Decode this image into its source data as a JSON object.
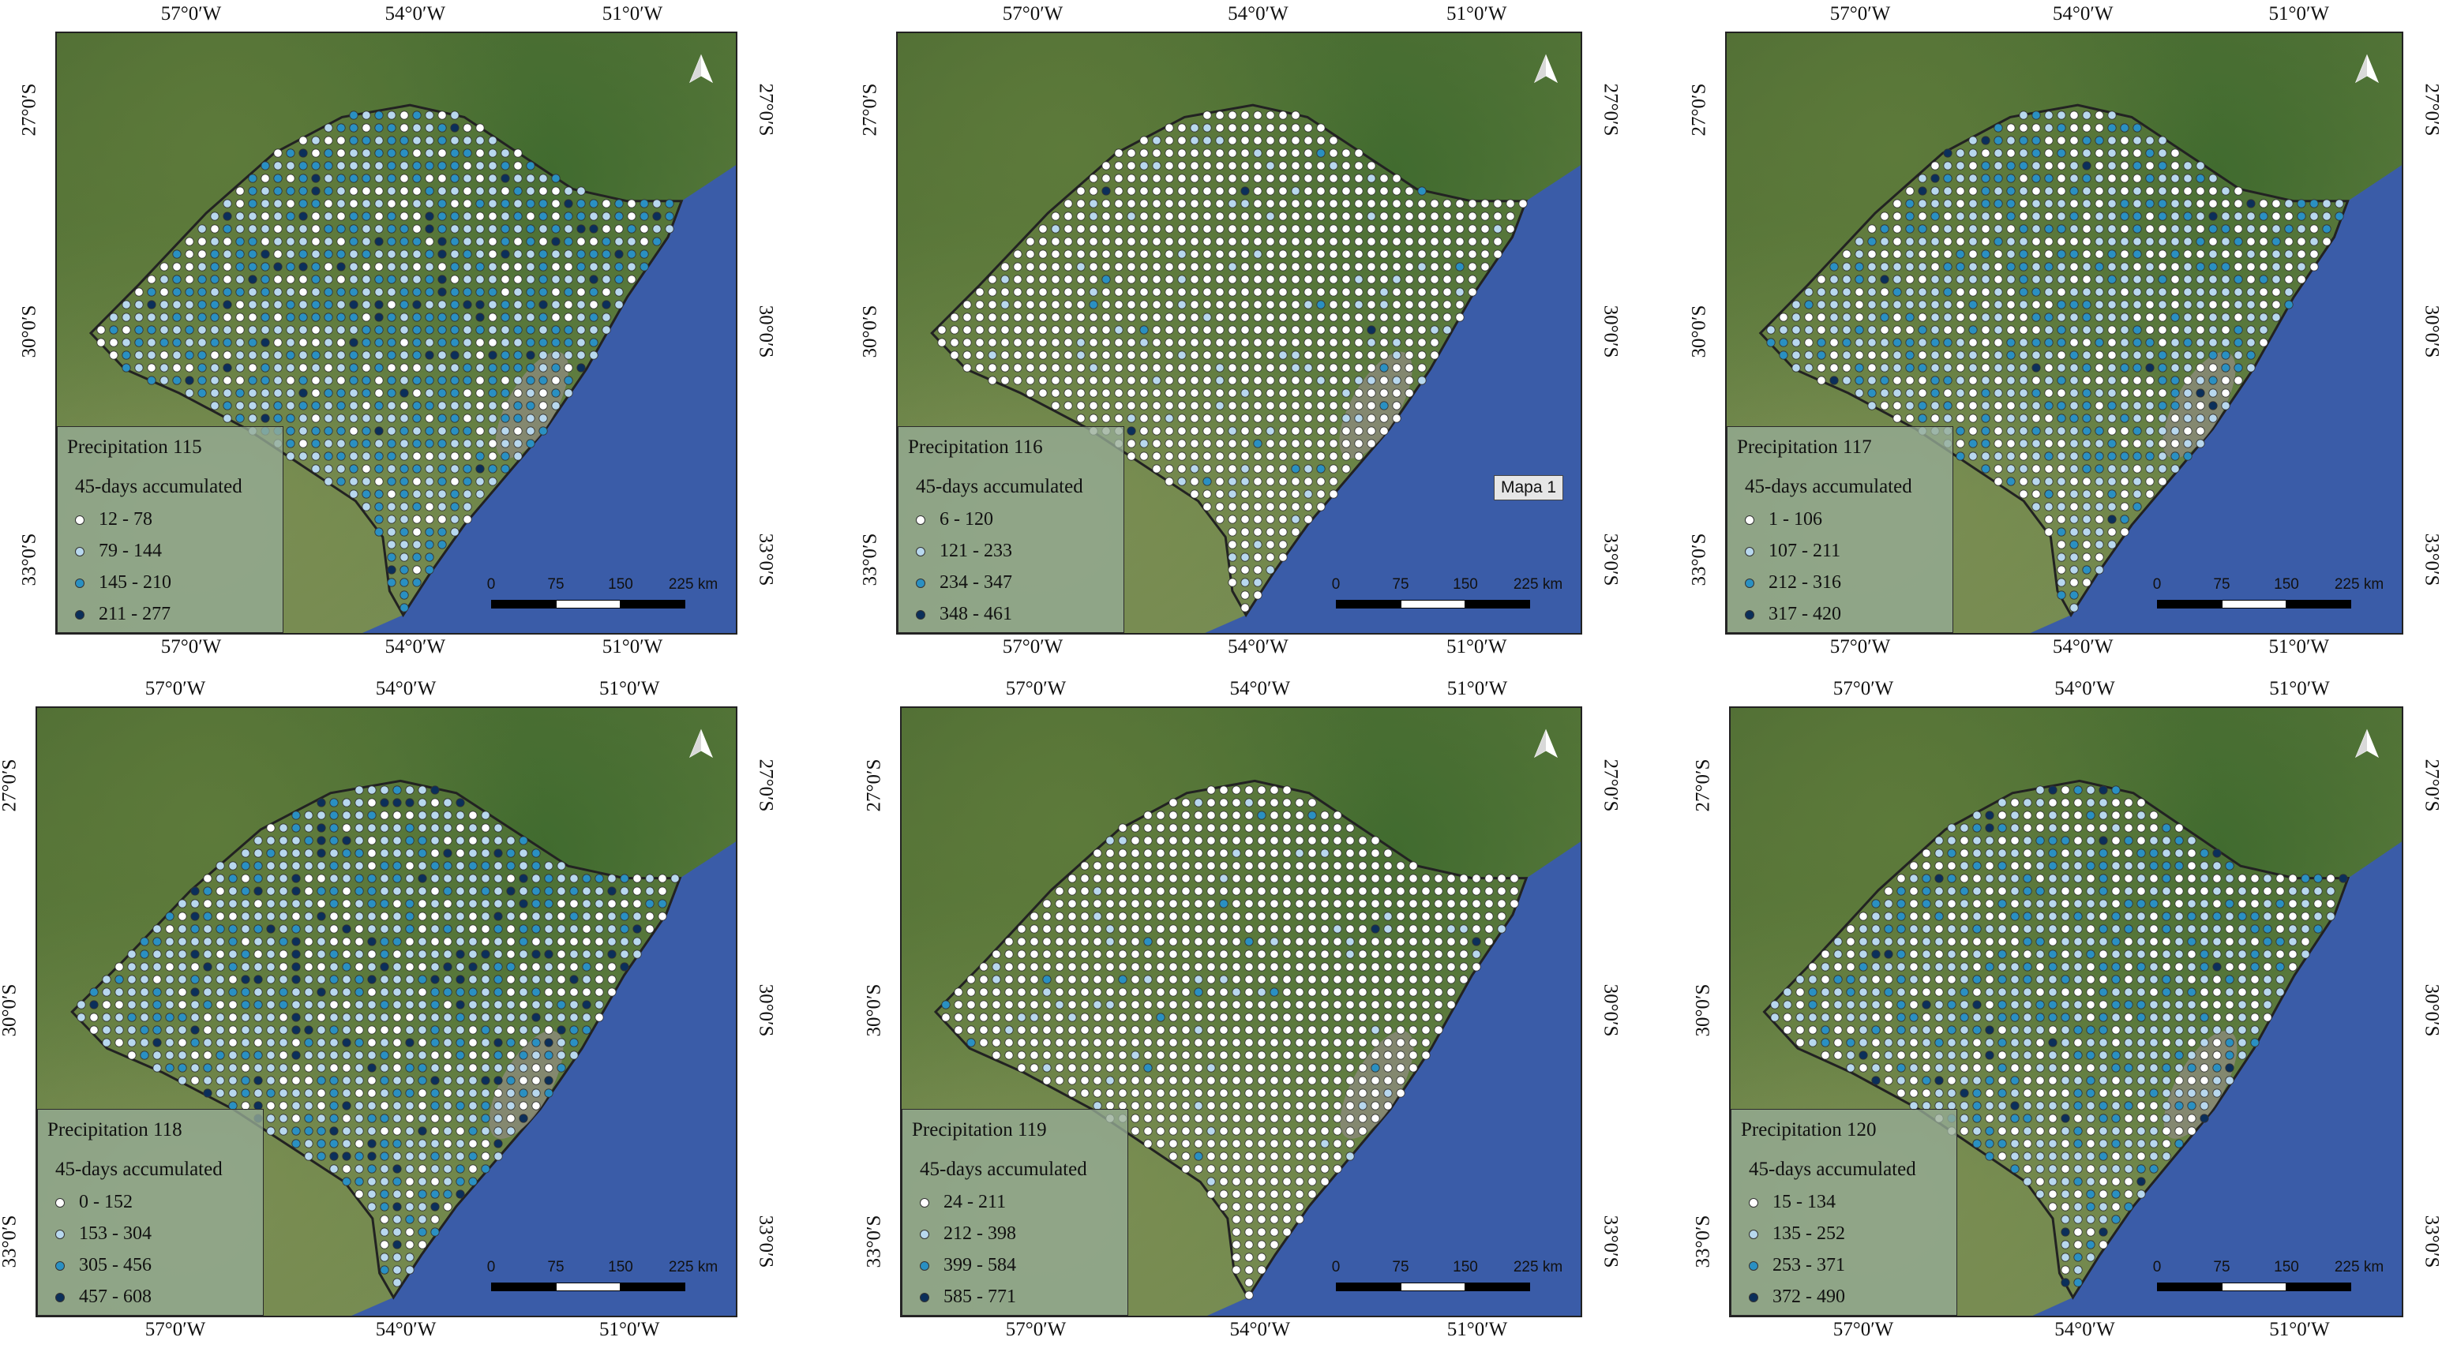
{
  "axis_labels": {
    "lon": [
      "57°0′W",
      "54°0′W",
      "51°0′W"
    ],
    "lat": [
      "27°0′S",
      "30°0′S",
      "33°0′S"
    ]
  },
  "scale": {
    "ticks": [
      "0",
      "75",
      "150",
      "225 km"
    ]
  },
  "colors": {
    "class1": "#ffffff",
    "class2": "#b8d8ee",
    "class3": "#2a90c2",
    "class4": "#0b2f5a",
    "ocean": "#3a5ca8"
  },
  "extra_label": "Mapa 1",
  "panels": [
    {
      "title": "Precipitation 115",
      "subtitle": "45-days accumulated",
      "classes": [
        "12 - 78",
        "79 - 144",
        "145 - 210",
        "211 - 277"
      ],
      "mix": [
        0.22,
        0.38,
        0.34,
        0.06
      ]
    },
    {
      "title": "Precipitation 116",
      "subtitle": "45-days accumulated",
      "classes": [
        "6 - 120",
        "121 - 233",
        "234 - 347",
        "348 - 461"
      ],
      "mix": [
        0.9,
        0.08,
        0.015,
        0.005
      ]
    },
    {
      "title": "Precipitation 117",
      "subtitle": "45-days accumulated",
      "classes": [
        "1 - 106",
        "107 - 211",
        "212 - 316",
        "317 - 420"
      ],
      "mix": [
        0.3,
        0.45,
        0.23,
        0.02
      ]
    },
    {
      "title": "Precipitation 118",
      "subtitle": "45-days accumulated",
      "classes": [
        "0 - 152",
        "153 - 304",
        "305 - 456",
        "457 - 608"
      ],
      "mix": [
        0.25,
        0.45,
        0.2,
        0.1
      ]
    },
    {
      "title": "Precipitation 119",
      "subtitle": "45-days accumulated",
      "classes": [
        "24 - 211",
        "212 - 398",
        "399 - 584",
        "585 - 771"
      ],
      "mix": [
        0.93,
        0.05,
        0.015,
        0.005
      ]
    },
    {
      "title": "Precipitation 120",
      "subtitle": "45-days accumulated",
      "classes": [
        "15 - 134",
        "135 - 252",
        "253 - 371",
        "372 - 490"
      ],
      "mix": [
        0.35,
        0.4,
        0.22,
        0.03
      ]
    }
  ]
}
